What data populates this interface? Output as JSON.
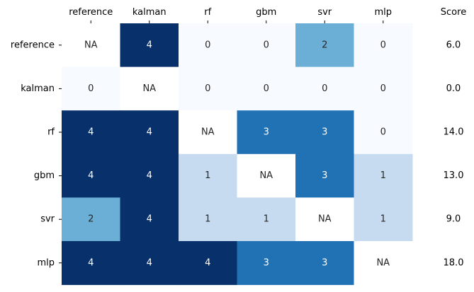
{
  "chart_data": {
    "type": "heatmap",
    "columns": [
      "reference",
      "kalman",
      "rf",
      "gbm",
      "svr",
      "mlp"
    ],
    "rows": [
      "reference",
      "kalman",
      "rf",
      "gbm",
      "svr",
      "mlp"
    ],
    "values": [
      [
        null,
        4,
        0,
        0,
        2,
        0
      ],
      [
        0,
        null,
        0,
        0,
        0,
        0
      ],
      [
        4,
        4,
        null,
        3,
        3,
        0
      ],
      [
        4,
        4,
        1,
        null,
        3,
        1
      ],
      [
        2,
        4,
        1,
        1,
        null,
        1
      ],
      [
        4,
        4,
        4,
        3,
        3,
        null
      ]
    ],
    "missing_label": "NA",
    "score_header": "Score",
    "scores": [
      "6.0",
      "0.0",
      "14.0",
      "13.0",
      "9.0",
      "18.0"
    ],
    "colormap": "Blues",
    "value_range": [
      0,
      4
    ],
    "column_labels_position": "top"
  }
}
